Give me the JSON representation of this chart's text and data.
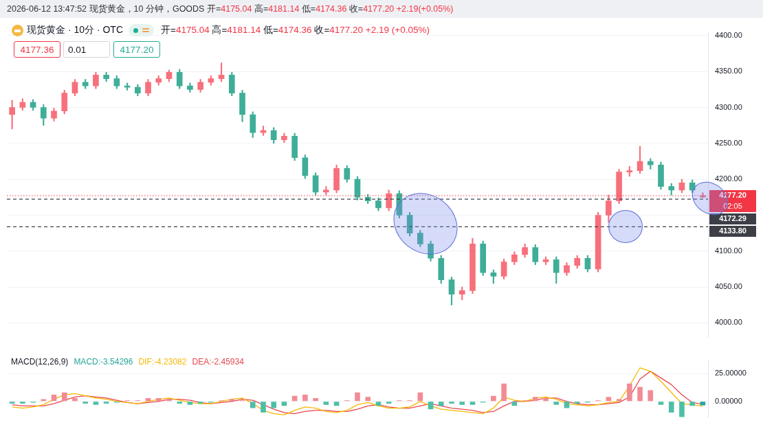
{
  "chart_data": [
    {
      "type": "candlestick",
      "title": "现货黄金 · 10分 · OTC",
      "subtitle": "开=4175.04 高=4181.14 低=4174.36 收=4177.20 +2.19 (+0.05%)",
      "annotations": [
        "2026-06-12 13:47:52 现货黄金，10 分钟，GOODS 开=4175.04 高=4181.14 低=4174.36 收=4177.20 +2.19(+0.05%)",
        "4177.36",
        "0.01",
        "4177.20",
        "02:05"
      ],
      "categories": [
        null,
        null,
        null,
        null,
        null,
        null,
        null,
        null,
        null,
        null,
        null,
        null,
        null,
        null,
        null,
        null,
        null,
        null,
        null,
        null,
        null,
        null,
        null,
        null,
        null,
        null,
        null,
        null,
        null,
        null,
        null,
        null,
        null,
        null,
        null,
        null,
        null,
        null,
        null,
        null,
        null,
        null,
        null,
        null,
        null,
        null,
        null,
        null,
        null,
        null,
        null,
        null,
        null,
        null,
        null,
        null,
        null,
        null,
        null,
        null,
        null,
        null,
        null,
        null,
        null,
        null,
        null
      ],
      "ohlc": [
        [
          4290,
          4310,
          4270,
          4300
        ],
        [
          4300,
          4312,
          4296,
          4307
        ],
        [
          4307,
          4311,
          4296,
          4300
        ],
        [
          4300,
          4304,
          4275,
          4285
        ],
        [
          4285,
          4299,
          4281,
          4295
        ],
        [
          4295,
          4324,
          4291,
          4320
        ],
        [
          4320,
          4339,
          4316,
          4335
        ],
        [
          4335,
          4339,
          4326,
          4330
        ],
        [
          4330,
          4349,
          4326,
          4345
        ],
        [
          4345,
          4349,
          4336,
          4340
        ],
        [
          4340,
          4344,
          4326,
          4330
        ],
        [
          4330,
          4334,
          4324,
          4328
        ],
        [
          4328,
          4332,
          4316,
          4320
        ],
        [
          4320,
          4339,
          4316,
          4335
        ],
        [
          4335,
          4344,
          4331,
          4340
        ],
        [
          4340,
          4352,
          4336,
          4349
        ],
        [
          4349,
          4353,
          4326,
          4330
        ],
        [
          4330,
          4334,
          4321,
          4325
        ],
        [
          4325,
          4339,
          4321,
          4335
        ],
        [
          4335,
          4344,
          4331,
          4340
        ],
        [
          4340,
          4362,
          4336,
          4345
        ],
        [
          4345,
          4349,
          4316,
          4320
        ],
        [
          4320,
          4324,
          4280,
          4290
        ],
        [
          4290,
          4294,
          4258,
          4265
        ],
        [
          4265,
          4274,
          4261,
          4268
        ],
        [
          4268,
          4272,
          4250,
          4255
        ],
        [
          4255,
          4264,
          4251,
          4260
        ],
        [
          4260,
          4264,
          4226,
          4230
        ],
        [
          4230,
          4234,
          4201,
          4205
        ],
        [
          4205,
          4209,
          4178,
          4182
        ],
        [
          4182,
          4190,
          4178,
          4185
        ],
        [
          4185,
          4220,
          4181,
          4215
        ],
        [
          4215,
          4219,
          4196,
          4200
        ],
        [
          4200,
          4204,
          4171,
          4175
        ],
        [
          4175,
          4179,
          4166,
          4170
        ],
        [
          4170,
          4174,
          4156,
          4160
        ],
        [
          4160,
          4185,
          4156,
          4180
        ],
        [
          4180,
          4184,
          4146,
          4150
        ],
        [
          4150,
          4154,
          4121,
          4125
        ],
        [
          4125,
          4129,
          4106,
          4110
        ],
        [
          4110,
          4114,
          4086,
          4090
        ],
        [
          4090,
          4094,
          4055,
          4060
        ],
        [
          4060,
          4064,
          4025,
          4040
        ],
        [
          4040,
          4050,
          4032,
          4045
        ],
        [
          4045,
          4118,
          4041,
          4110
        ],
        [
          4110,
          4114,
          4066,
          4070
        ],
        [
          4070,
          4074,
          4055,
          4065
        ],
        [
          4065,
          4089,
          4061,
          4085
        ],
        [
          4085,
          4099,
          4081,
          4095
        ],
        [
          4095,
          4110,
          4091,
          4105
        ],
        [
          4105,
          4109,
          4081,
          4085
        ],
        [
          4085,
          4092,
          4081,
          4088
        ],
        [
          4088,
          4092,
          4055,
          4070
        ],
        [
          4070,
          4084,
          4066,
          4080
        ],
        [
          4080,
          4094,
          4076,
          4090
        ],
        [
          4090,
          4094,
          4071,
          4075
        ],
        [
          4075,
          4154,
          4071,
          4150
        ],
        [
          4150,
          4178,
          4140,
          4170
        ],
        [
          4170,
          4214,
          4166,
          4210
        ],
        [
          4210,
          4218,
          4204,
          4212
        ],
        [
          4212,
          4246,
          4208,
          4225
        ],
        [
          4225,
          4229,
          4214,
          4220
        ],
        [
          4220,
          4224,
          4186,
          4190
        ],
        [
          4190,
          4194,
          4178,
          4185
        ],
        [
          4185,
          4200,
          4181,
          4195
        ],
        [
          4195,
          4199,
          4181,
          4185
        ],
        [
          4175.04,
          4181.14,
          4174.36,
          4177.2
        ]
      ],
      "colors": [
        "#f7707c",
        "#f7707c",
        "#3fae98",
        "#3fae98",
        "#f7707c",
        "#f7707c",
        "#f7707c",
        "#3fae98",
        "#f7707c",
        "#3fae98",
        "#3fae98",
        "#3fae98",
        "#3fae98",
        "#f7707c",
        "#f7707c",
        "#f7707c",
        "#3fae98",
        "#3fae98",
        "#f7707c",
        "#f7707c",
        "#f7707c",
        "#3fae98",
        "#3fae98",
        "#3fae98",
        "#f7707c",
        "#3fae98",
        "#f7707c",
        "#3fae98",
        "#3fae98",
        "#3fae98",
        "#f7707c",
        "#f7707c",
        "#3fae98",
        "#3fae98",
        "#3fae98",
        "#3fae98",
        "#f7707c",
        "#3fae98",
        "#3fae98",
        "#3fae98",
        "#3fae98",
        "#3fae98",
        "#3fae98",
        "#f7707c",
        "#f7707c",
        "#3fae98",
        "#3fae98",
        "#f7707c",
        "#f7707c",
        "#f7707c",
        "#3fae98",
        "#f7707c",
        "#3fae98",
        "#f7707c",
        "#f7707c",
        "#3fae98",
        "#f7707c",
        "#f7707c",
        "#f7707c",
        "#f7707c",
        "#f7707c",
        "#3fae98",
        "#3fae98",
        "#3fae98",
        "#f7707c",
        "#3fae98",
        "#f7707c"
      ],
      "ylim": [
        3980,
        4405
      ],
      "yticks": [
        {
          "value": 4000,
          "label": "4000.00"
        },
        {
          "value": 4050,
          "label": "4050.00"
        },
        {
          "value": 4100,
          "label": "4100.00"
        },
        {
          "value": 4150,
          "label": null
        },
        {
          "value": 4200,
          "label": "4200.00"
        },
        {
          "value": 4250,
          "label": "4250.00"
        },
        {
          "value": 4300,
          "label": "4300.00"
        },
        {
          "value": 4350,
          "label": "4350.00"
        },
        {
          "value": 4400,
          "label": "4400.00"
        }
      ],
      "grid": "y",
      "tick_labels": "y",
      "ref_lines": [
        {
          "axis": "y",
          "value": 4177.2,
          "label": "4177.20",
          "color": "#f23645",
          "line_style": "dotted"
        },
        {
          "axis": "y",
          "value": 4172.29,
          "label": "4172.29",
          "color": "#3d3f47",
          "line_style": "dashed"
        },
        {
          "axis": "y",
          "value": 4133.8,
          "label": "4133.80",
          "color": "#3d3f47",
          "line_style": "dashed"
        }
      ]
    },
    {
      "type": "bar",
      "title": "MACD(12,26,9)",
      "categories": [
        null,
        null,
        null,
        null,
        null,
        null,
        null,
        null,
        null,
        null,
        null,
        null,
        null,
        null,
        null,
        null,
        null,
        null,
        null,
        null,
        null,
        null,
        null,
        null,
        null,
        null,
        null,
        null,
        null,
        null,
        null,
        null,
        null,
        null,
        null,
        null,
        null,
        null,
        null,
        null,
        null,
        null,
        null,
        null,
        null,
        null,
        null,
        null,
        null,
        null,
        null,
        null,
        null,
        null,
        null,
        null,
        null,
        null,
        null,
        null,
        null,
        null,
        null,
        null,
        null,
        null,
        null
      ],
      "series": [
        {
          "name": "MACD:-3.54296",
          "type": "bar",
          "colors": [
            "#4dbfa6",
            "#4dbfa6",
            "#4dbfa6",
            "#f28b95",
            "#f28b95",
            "#f28b95",
            "#f28b95",
            "#4dbfa6",
            "#4dbfa6",
            "#4dbfa6",
            "#4dbfa6",
            "#f28b95",
            "#f28b95",
            "#f28b95",
            "#f28b95",
            "#f28b95",
            "#4dbfa6",
            "#4dbfa6",
            "#4dbfa6",
            "#4dbfa6",
            "#f28b95",
            "#f28b95",
            "#f28b95",
            "#4dbfa6",
            "#4dbfa6",
            "#4dbfa6",
            "#4dbfa6",
            "#f28b95",
            "#f28b95",
            "#f28b95",
            "#4dbfa6",
            "#4dbfa6",
            "#f28b95",
            "#f28b95",
            "#f28b95",
            "#4dbfa6",
            "#4dbfa6",
            "#f28b95",
            "#f28b95",
            "#f28b95",
            "#4dbfa6",
            "#4dbfa6",
            "#4dbfa6",
            "#4dbfa6",
            "#4dbfa6",
            "#4dbfa6",
            "#f28b95",
            "#f28b95",
            "#4dbfa6",
            "#f28b95",
            "#f28b95",
            "#f28b95",
            "#4dbfa6",
            "#4dbfa6",
            "#4dbfa6",
            "#4dbfa6",
            "#f28b95",
            "#f28b95",
            "#f28b95",
            "#f28b95",
            "#f28b95",
            "#f28b95",
            "#4dbfa6",
            "#4dbfa6",
            "#4dbfa6",
            "#4dbfa6",
            "#26a69a"
          ],
          "values": [
            -2,
            -2,
            -1,
            2,
            6,
            8,
            3,
            -2,
            -3,
            -2,
            -1,
            1,
            1,
            3,
            3,
            2,
            -2,
            -3,
            -2,
            -1,
            1,
            2,
            1,
            -6,
            -10,
            -6,
            -4,
            5,
            6,
            3,
            -3,
            -4,
            1,
            8,
            4,
            -4,
            -2,
            1,
            1,
            8,
            -7,
            -4,
            -2,
            -3,
            -3,
            -1,
            5,
            16,
            -4,
            1,
            4,
            3,
            -3,
            -6,
            -2,
            -1,
            1,
            4,
            2,
            16,
            13,
            10,
            -3,
            -10,
            -14,
            -4,
            -3.5
          ]
        },
        {
          "name": "DIF:-4.23082",
          "type": "line",
          "color": "#f5b800",
          "values": [
            -5,
            -6,
            -5,
            -3,
            2,
            6,
            7,
            5,
            3,
            2,
            0,
            -1,
            -2,
            0,
            2,
            3,
            1,
            -1,
            -2,
            -2,
            0,
            2,
            3,
            -2,
            -8,
            -11,
            -12,
            -8,
            -5,
            -6,
            -9,
            -10,
            -8,
            -3,
            -1,
            -4,
            -6,
            -6,
            -5,
            0,
            -4,
            -7,
            -8,
            -9,
            -10,
            -11,
            -6,
            4,
            1,
            0,
            3,
            4,
            2,
            -2,
            -3,
            -4,
            -3,
            -1,
            0,
            14,
            30,
            27,
            18,
            8,
            -2,
            -3,
            -4.2
          ]
        },
        {
          "name": "DEA:-2.45934",
          "type": "line",
          "color": "#e8474f",
          "values": [
            -3,
            -4,
            -4,
            -4,
            -2,
            1,
            4,
            5,
            4,
            3,
            1,
            -1,
            -2,
            -1,
            0,
            2,
            2,
            1,
            -1,
            -2,
            -1,
            0,
            2,
            1,
            -3,
            -7,
            -10,
            -11,
            -9,
            -8,
            -8,
            -9,
            -9,
            -7,
            -4,
            -3,
            -5,
            -6,
            -6,
            -4,
            -2,
            -4,
            -6,
            -7,
            -8,
            -10,
            -9,
            -4,
            0,
            0,
            1,
            3,
            3,
            0,
            -2,
            -3,
            -3,
            -2,
            -1,
            4,
            20,
            27,
            21,
            15,
            6,
            -1,
            -2.5
          ]
        }
      ],
      "ylim": [
        -14.5,
        37
      ],
      "yticks": [
        {
          "value": 0,
          "label": "0.00000"
        },
        {
          "value": 25,
          "label": "25.00000"
        }
      ],
      "grid": "y",
      "tick_labels": "y",
      "marker": "none"
    }
  ]
}
